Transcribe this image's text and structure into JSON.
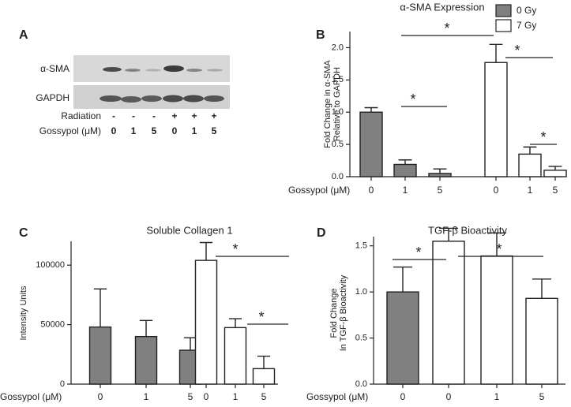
{
  "blot": {
    "label": "A",
    "rows": [
      "α-SMA",
      "GAPDH"
    ],
    "conditions": [
      {
        "name": "Radiation",
        "values": [
          "-",
          "-",
          "-",
          "+",
          "+",
          "+"
        ]
      },
      {
        "name": "Gossypol (μM)",
        "values": [
          "0",
          "1",
          "5",
          "0",
          "1",
          "5"
        ]
      }
    ]
  },
  "chart_data": [
    {
      "type": "bar",
      "label": "B",
      "title": "α-SMA Expression",
      "ylabel": [
        "Fold Change in α-SMA",
        "Relative to GAPDH"
      ],
      "xlabel": "Gossypol (μM)",
      "categories": [
        "0",
        "1",
        "5",
        "0",
        "1",
        "5"
      ],
      "series": [
        {
          "name": "0 Gy",
          "color": "#808080",
          "values": [
            1.0,
            0.19,
            0.05,
            null,
            null,
            null
          ],
          "errors": [
            0.07,
            0.07,
            0.07,
            null,
            null,
            null
          ]
        },
        {
          "name": "7 Gy",
          "color": "#ffffff",
          "values": [
            null,
            null,
            null,
            1.77,
            0.35,
            0.1
          ],
          "errors": [
            null,
            null,
            null,
            0.28,
            0.11,
            0.06
          ]
        }
      ],
      "ylim": [
        0,
        2.25
      ],
      "yticks": [
        {
          "value": 0,
          "label": "0.0"
        },
        {
          "value": 0.5,
          "label": "0.5"
        },
        {
          "value": 1,
          "label": "1.0"
        },
        {
          "value": 1.5,
          "label": "1.5"
        },
        {
          "value": 2,
          "label": "2.0"
        }
      ],
      "annotations": [
        "*",
        "*",
        "*",
        "*"
      ],
      "legend": "upper right"
    },
    {
      "type": "bar",
      "label": "C",
      "title": "Soluble Collagen 1",
      "ylabel": [
        "Intensity Units"
      ],
      "xlabel": "Gossypol (μM)",
      "categories": [
        "0",
        "1",
        "5",
        "0",
        "1",
        "5"
      ],
      "series": [
        {
          "name": "0 Gy",
          "color": "#808080",
          "values": [
            48000,
            40000,
            28500,
            null,
            null,
            null
          ],
          "errors": [
            32000,
            13500,
            10500,
            null,
            null,
            null
          ]
        },
        {
          "name": "7 Gy",
          "color": "#ffffff",
          "values": [
            null,
            null,
            null,
            104000,
            47500,
            13000
          ],
          "errors": [
            null,
            null,
            null,
            15000,
            7500,
            10500
          ]
        }
      ],
      "ylim": [
        0,
        120000
      ],
      "yticks": [
        0,
        50000,
        100000
      ],
      "annotations": [
        "*",
        "*"
      ]
    },
    {
      "type": "bar",
      "label": "D",
      "title": "TGF-β Bioactivity",
      "ylabel": [
        "Fold Change",
        "In TGF-β Bioactivity"
      ],
      "xlabel": "Gossypol (μM)",
      "categories": [
        "0",
        "0",
        "1",
        "5"
      ],
      "series": [
        {
          "name": "0 Gy",
          "color": "#808080",
          "values": [
            1.0,
            null,
            null,
            null
          ],
          "errors": [
            0.27,
            null,
            null,
            null
          ]
        },
        {
          "name": "7 Gy",
          "color": "#ffffff",
          "values": [
            null,
            1.55,
            1.39,
            0.93
          ],
          "errors": [
            null,
            0.14,
            0.25,
            0.21
          ]
        }
      ],
      "ylim": [
        0,
        1.6
      ],
      "yticks": [
        {
          "value": 0,
          "label": "0.0"
        },
        {
          "value": 0.5,
          "label": "0.5"
        },
        {
          "value": 1,
          "label": "1.0"
        },
        {
          "value": 1.5,
          "label": "1.5"
        }
      ],
      "annotations": [
        "*",
        "*"
      ]
    }
  ]
}
